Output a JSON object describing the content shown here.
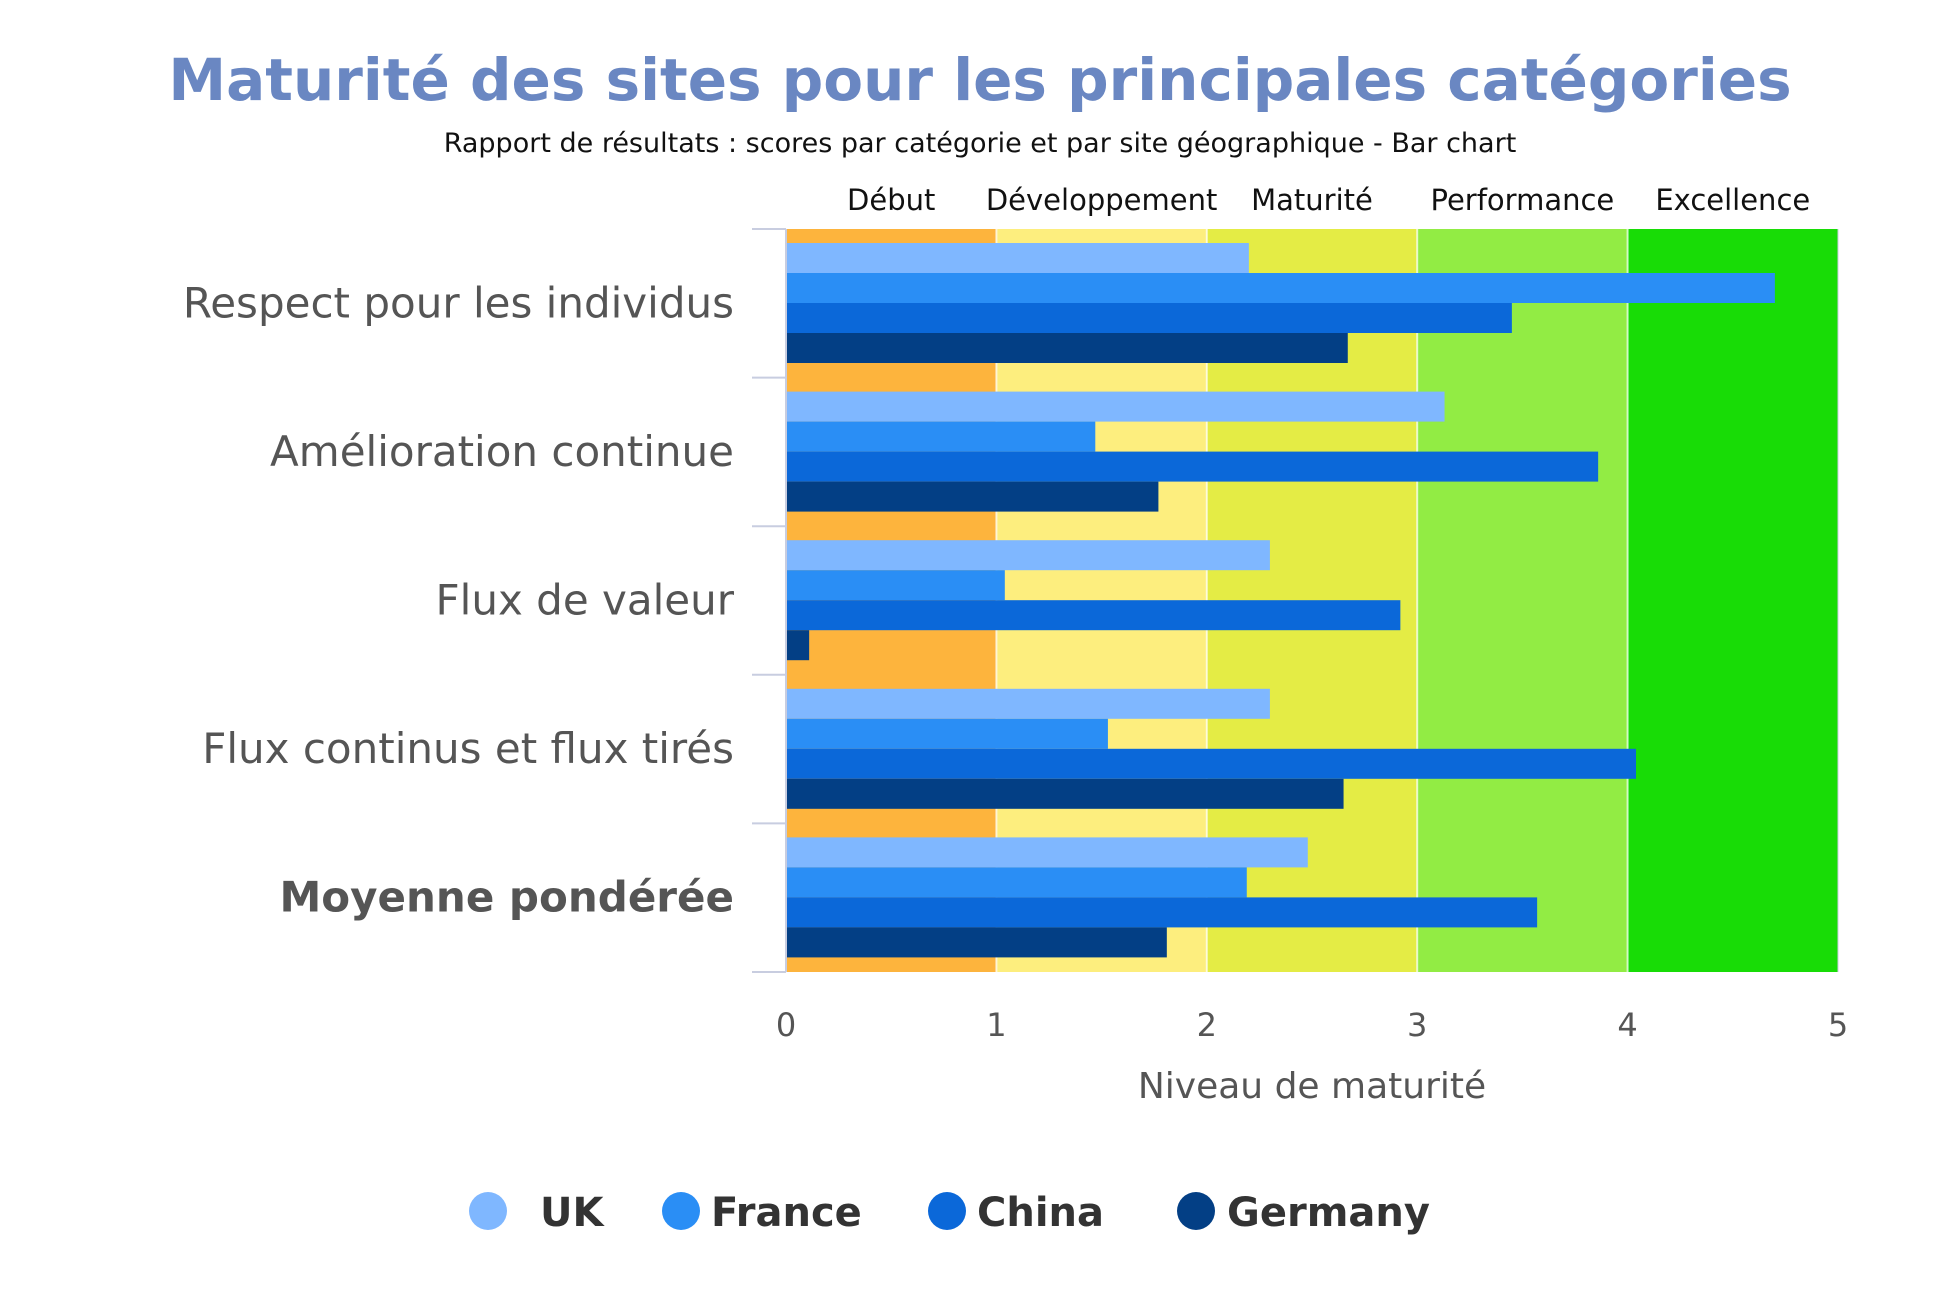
{
  "chart_data": {
    "type": "bar",
    "orientation": "horizontal",
    "title": "Maturité des sites pour les principales catégories",
    "subtitle": "Rapport de résultats : scores par catégorie et par site géographique - Bar chart",
    "xlabel": "Niveau de maturité",
    "ylabel": "",
    "xlim": [
      0,
      5
    ],
    "x_ticks": [
      0,
      1,
      2,
      3,
      4,
      5
    ],
    "categories": [
      "Respect pour les individus",
      "Amélioration continue",
      "Flux de valeur",
      "Flux continus et flux tirés",
      "Moyenne pondérée"
    ],
    "bold_categories": [
      "Moyenne pondérée"
    ],
    "series": [
      {
        "name": "UK",
        "color": "#7fb7ff",
        "values": [
          2.2,
          3.13,
          2.3,
          2.3,
          2.48
        ]
      },
      {
        "name": "France",
        "color": "#2a8ef5",
        "values": [
          4.7,
          1.47,
          1.04,
          1.53,
          2.19
        ]
      },
      {
        "name": "China",
        "color": "#0b68d9",
        "values": [
          3.45,
          3.86,
          2.92,
          4.04,
          3.57
        ]
      },
      {
        "name": "Germany",
        "color": "#033f85",
        "values": [
          2.67,
          1.77,
          0.11,
          2.65,
          1.81
        ]
      }
    ],
    "bands": [
      {
        "label": "Début",
        "from": 0,
        "to": 1,
        "color": "#fdb43d"
      },
      {
        "label": "Développement",
        "from": 1,
        "to": 2,
        "color": "#fdee7e"
      },
      {
        "label": "Maturité",
        "from": 2,
        "to": 3,
        "color": "#e4ec45"
      },
      {
        "label": "Performance",
        "from": 3,
        "to": 4,
        "color": "#92ec44"
      },
      {
        "label": "Excellence",
        "from": 4,
        "to": 5,
        "color": "#18dc06"
      }
    ],
    "legend_position": "bottom-center",
    "grid": false
  },
  "colors": {
    "title": "#6a87c2",
    "subtitle": "#111111",
    "axis_text": "#555555",
    "band_label": "#111111",
    "legend_text": "#333333"
  }
}
